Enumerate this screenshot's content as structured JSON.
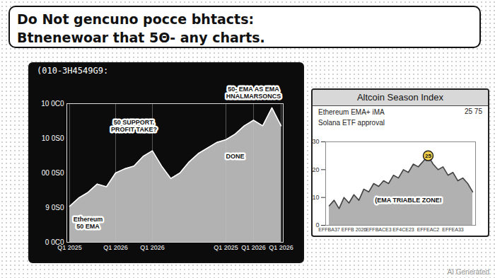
{
  "banner": [
    "Do Not gencuno pocce bhtacts:",
    "Btnenewoar that 5Θ- any charts."
  ],
  "watermark": "AI Generated",
  "chart_data": [
    {
      "type": "area",
      "title": "(010-3H4549G9:",
      "categories": [
        "Q1 2025",
        null,
        null,
        null,
        null,
        "Q1 2026",
        null,
        null,
        null,
        "Q1 2026",
        null,
        null,
        null,
        null,
        null,
        null,
        null,
        "Q1 2025",
        null,
        null,
        "Q1 2026",
        null,
        null,
        "Q1 2026"
      ],
      "values": [
        26,
        32,
        36,
        42,
        40,
        50,
        53,
        55,
        62,
        66,
        55,
        46,
        50,
        58,
        64,
        68,
        72,
        74,
        78,
        84,
        88,
        84,
        97,
        84
      ],
      "color": "#c4c4c4",
      "ylim": [
        0,
        100
      ],
      "yticks": [
        {
          "value": 0,
          "label": "0 0C0"
        },
        {
          "value": 25,
          "label": "9 0S0"
        },
        {
          "value": 50,
          "label": "00 0S0"
        },
        {
          "value": 75,
          "label": "10 0S0"
        },
        {
          "value": 100,
          "label": "10 0C0"
        }
      ],
      "grid": "x",
      "annotations": [
        {
          "text": "50 SUPPORT.\nPROFIT TAKE?",
          "x": 7,
          "y": 84
        },
        {
          "text": "50- EMA AS EMA\nHNALMARSONCS",
          "x": 20,
          "y": 108
        },
        {
          "text": "DONE",
          "x": 18,
          "y": 62
        },
        {
          "text": "Ethereum\n50 EMA",
          "x": 2,
          "y": 14
        }
      ]
    },
    {
      "type": "area",
      "title": "Altcoin Season Index",
      "subtitle": [
        "Ethereum EMA+ iMA",
        "Solana ETF approval"
      ],
      "corner_text": "25 75",
      "categories": [
        "EFFBA37",
        null,
        null,
        null,
        null,
        "EFFB 2026",
        null,
        null,
        null,
        null,
        "EFFBACE3",
        null,
        null,
        null,
        null,
        "EF4CE23",
        null,
        null,
        null,
        null,
        "EFFEAC2",
        null,
        null,
        null,
        null,
        "EFFEA33",
        null,
        null,
        null,
        null
      ],
      "values": [
        7,
        9,
        6,
        10,
        8,
        11,
        9,
        13,
        12,
        15,
        14,
        16,
        15,
        18,
        17,
        20,
        19,
        22,
        21,
        23,
        25,
        22,
        20,
        21,
        18,
        19,
        16,
        17,
        15,
        12
      ],
      "color": "#a8a8a8",
      "ylim": [
        0,
        30
      ],
      "yticks": [],
      "tick_labels": "x",
      "highlight": {
        "x": 20,
        "value": 25,
        "color": "#f2d04b"
      },
      "annotations": [
        {
          "text": "(EMA TRIABLE ZONE!",
          "x": 16,
          "y": 9
        }
      ]
    }
  ]
}
